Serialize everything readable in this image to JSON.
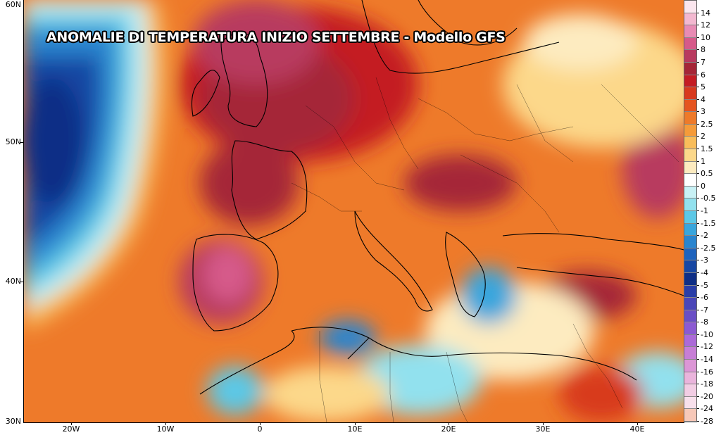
{
  "title": "ANOMALIE DI TEMPERATURA INIZIO SETTEMBRE - Modello GFS",
  "axes": {
    "latitude_labels": [
      "60N",
      "50N",
      "40N",
      "30N"
    ],
    "longitude_labels": [
      "20W",
      "10W",
      "0",
      "10E",
      "20E",
      "30E",
      "40E"
    ]
  },
  "legend": {
    "entries": [
      {
        "label": "14",
        "color": "#fbe6ee"
      },
      {
        "label": "12",
        "color": "#f3b8d0"
      },
      {
        "label": "10",
        "color": "#e88bb4"
      },
      {
        "label": "8",
        "color": "#d65a8a"
      },
      {
        "label": "7",
        "color": "#b83a5f"
      },
      {
        "label": "6",
        "color": "#a52637"
      },
      {
        "label": "5",
        "color": "#c41d24"
      },
      {
        "label": "4",
        "color": "#d83a1e"
      },
      {
        "label": "3",
        "color": "#e55420"
      },
      {
        "label": "2.5",
        "color": "#ee7a2a"
      },
      {
        "label": "2",
        "color": "#f59b3a"
      },
      {
        "label": "1.5",
        "color": "#f9bd5a"
      },
      {
        "label": "1",
        "color": "#fcd88a"
      },
      {
        "label": "0.5",
        "color": "#fdebc0"
      },
      {
        "label": "0",
        "color": "#ffffff"
      },
      {
        "label": "-0.5",
        "color": "#c8f1f5"
      },
      {
        "label": "-1",
        "color": "#92e1ee"
      },
      {
        "label": "-1.5",
        "color": "#5cc8e6"
      },
      {
        "label": "-2",
        "color": "#3aa6dd"
      },
      {
        "label": "-2.5",
        "color": "#2a85cf"
      },
      {
        "label": "-3",
        "color": "#1e63bd"
      },
      {
        "label": "-4",
        "color": "#1747a3"
      },
      {
        "label": "-5",
        "color": "#0f2f86"
      },
      {
        "label": "-6",
        "color": "#2a3ea8"
      },
      {
        "label": "-7",
        "color": "#4b46b8"
      },
      {
        "label": "-8",
        "color": "#6a4ec6"
      },
      {
        "label": "-10",
        "color": "#8c5ad2"
      },
      {
        "label": "-12",
        "color": "#ac6ad8"
      },
      {
        "label": "-14",
        "color": "#c77ed6"
      },
      {
        "label": "-16",
        "color": "#dc96d6"
      },
      {
        "label": "-18",
        "color": "#eab4dc"
      },
      {
        "label": "-20",
        "color": "#f2cde4"
      },
      {
        "label": "-24",
        "color": "#f8e0ec"
      },
      {
        "label": "-28",
        "color": "#f7c8b8"
      }
    ]
  }
}
